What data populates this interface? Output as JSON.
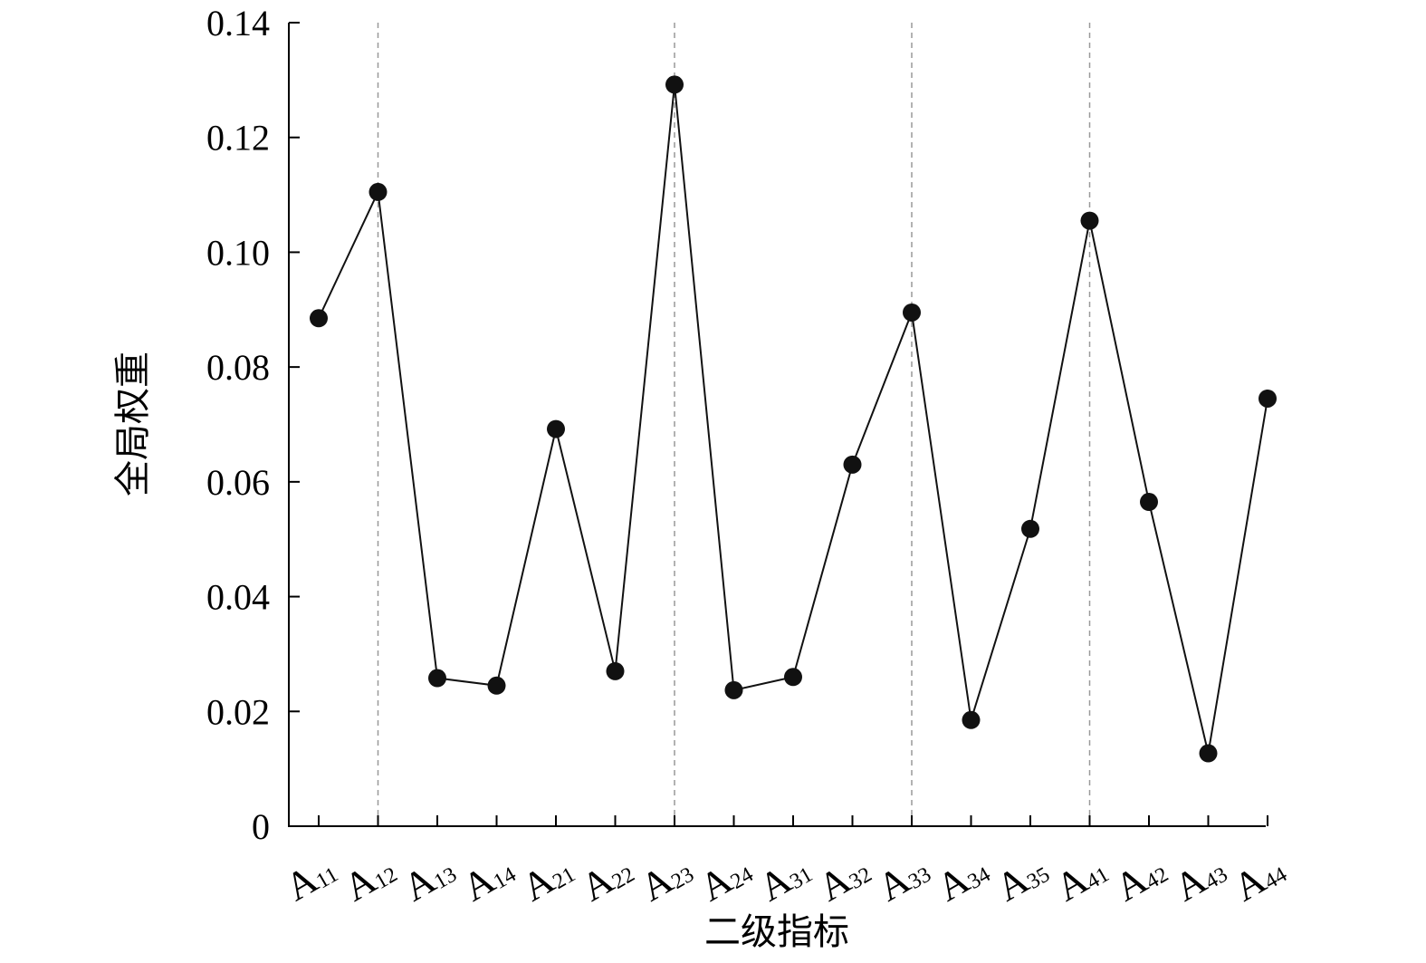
{
  "chart_data": {
    "type": "line",
    "title": "",
    "xlabel": "二级指标",
    "ylabel": "全局权重",
    "ylim": [
      0,
      0.14
    ],
    "yticks": [
      {
        "value": 0,
        "label": "0"
      },
      {
        "value": 0.02,
        "label": "0.02"
      },
      {
        "value": 0.04,
        "label": "0.04"
      },
      {
        "value": 0.06,
        "label": "0.06"
      },
      {
        "value": 0.08,
        "label": "0.08"
      },
      {
        "value": 0.1,
        "label": "0.10"
      },
      {
        "value": 0.12,
        "label": "0.12"
      },
      {
        "value": 0.14,
        "label": "0.14"
      }
    ],
    "categories": [
      {
        "label": "A",
        "sub": "11"
      },
      {
        "label": "A",
        "sub": "12"
      },
      {
        "label": "A",
        "sub": "13"
      },
      {
        "label": "A",
        "sub": "14"
      },
      {
        "label": "A",
        "sub": "21"
      },
      {
        "label": "A",
        "sub": "22"
      },
      {
        "label": "A",
        "sub": "23"
      },
      {
        "label": "A",
        "sub": "24"
      },
      {
        "label": "A",
        "sub": "31"
      },
      {
        "label": "A",
        "sub": "32"
      },
      {
        "label": "A",
        "sub": "33"
      },
      {
        "label": "A",
        "sub": "34"
      },
      {
        "label": "A",
        "sub": "35"
      },
      {
        "label": "A",
        "sub": "41"
      },
      {
        "label": "A",
        "sub": "42"
      },
      {
        "label": "A",
        "sub": "43"
      },
      {
        "label": "A",
        "sub": "44"
      }
    ],
    "values": [
      0.0885,
      0.1105,
      0.0258,
      0.0245,
      0.0692,
      0.027,
      0.1292,
      0.0237,
      0.026,
      0.063,
      0.0895,
      0.0185,
      0.0518,
      0.1055,
      0.0565,
      0.0127,
      0.0745
    ],
    "guide_lines_at": [
      "A12",
      "A23",
      "A33",
      "A41"
    ],
    "grid": false,
    "legend": "none",
    "colors": {
      "series": "#111111",
      "guide": "#999999",
      "axis": "#000000"
    },
    "marker": "filled-circle"
  }
}
